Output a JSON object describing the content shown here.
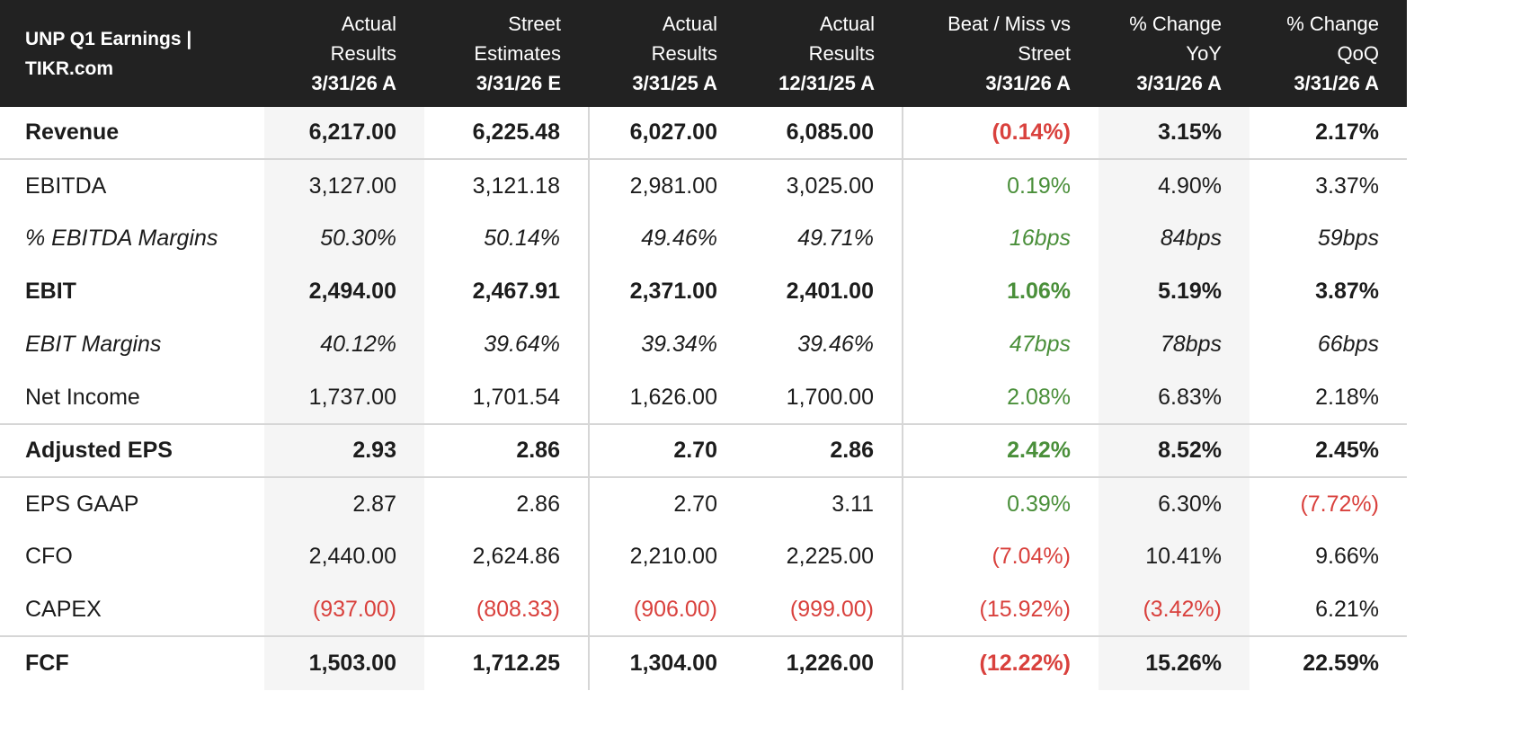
{
  "header": {
    "title_line1": "UNP Q1 Earnings |",
    "title_line2": "TIKR.com",
    "columns": [
      {
        "line1": "Actual",
        "line2": "Results",
        "date": "3/31/26 A"
      },
      {
        "line1": "Street",
        "line2": "Estimates",
        "date": "3/31/26 E"
      },
      {
        "line1": "Actual",
        "line2": "Results",
        "date": "3/31/25 A"
      },
      {
        "line1": "Actual",
        "line2": "Results",
        "date": "12/31/25 A"
      },
      {
        "line1": "Beat / Miss vs",
        "line2": "Street",
        "date": "3/31/26 A"
      },
      {
        "line1": "% Change",
        "line2": "YoY",
        "date": "3/31/26 A"
      },
      {
        "line1": "% Change",
        "line2": "QoQ",
        "date": "3/31/26 A"
      }
    ]
  },
  "rows": [
    {
      "label": "Revenue",
      "values": [
        "6,217.00",
        "6,225.48",
        "6,027.00",
        "6,085.00",
        "(0.14%)",
        "3.15%",
        "2.17%"
      ]
    },
    {
      "label": "EBITDA",
      "values": [
        "3,127.00",
        "3,121.18",
        "2,981.00",
        "3,025.00",
        "0.19%",
        "4.90%",
        "3.37%"
      ]
    },
    {
      "label": "% EBITDA Margins",
      "values": [
        "50.30%",
        "50.14%",
        "49.46%",
        "49.71%",
        "16bps",
        "84bps",
        "59bps"
      ]
    },
    {
      "label": "EBIT",
      "values": [
        "2,494.00",
        "2,467.91",
        "2,371.00",
        "2,401.00",
        "1.06%",
        "5.19%",
        "3.87%"
      ]
    },
    {
      "label": "EBIT Margins",
      "values": [
        "40.12%",
        "39.64%",
        "39.34%",
        "39.46%",
        "47bps",
        "78bps",
        "66bps"
      ]
    },
    {
      "label": "Net Income",
      "values": [
        "1,737.00",
        "1,701.54",
        "1,626.00",
        "1,700.00",
        "2.08%",
        "6.83%",
        "2.18%"
      ]
    },
    {
      "label": "Adjusted EPS",
      "values": [
        "2.93",
        "2.86",
        "2.70",
        "2.86",
        "2.42%",
        "8.52%",
        "2.45%"
      ]
    },
    {
      "label": "EPS GAAP",
      "values": [
        "2.87",
        "2.86",
        "2.70",
        "3.11",
        "0.39%",
        "6.30%",
        "(7.72%)"
      ]
    },
    {
      "label": "CFO",
      "values": [
        "2,440.00",
        "2,624.86",
        "2,210.00",
        "2,225.00",
        "(7.04%)",
        "10.41%",
        "9.66%"
      ]
    },
    {
      "label": "CAPEX",
      "values": [
        "(937.00)",
        "(808.33)",
        "(906.00)",
        "(999.00)",
        "(15.92%)",
        "(3.42%)",
        "6.21%"
      ]
    },
    {
      "label": "FCF",
      "values": [
        "1,503.00",
        "1,712.25",
        "1,304.00",
        "1,226.00",
        "(12.22%)",
        "15.26%",
        "22.59%"
      ]
    }
  ],
  "colors": {
    "header_bg": "#222222",
    "negative": "#d9413d",
    "positive": "#4a8f3a",
    "shade": "#f5f5f5"
  }
}
